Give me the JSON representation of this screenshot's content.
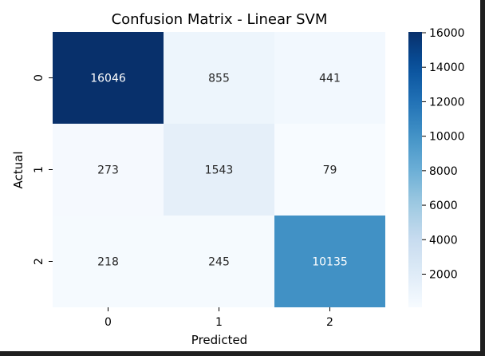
{
  "chart_data": {
    "type": "heatmap",
    "title": "Confusion Matrix - Linear SVM",
    "xlabel": "Predicted",
    "ylabel": "Actual",
    "x_categories": [
      "0",
      "1",
      "2"
    ],
    "y_categories": [
      "0",
      "1",
      "2"
    ],
    "matrix": [
      [
        16046,
        855,
        441
      ],
      [
        273,
        1543,
        79
      ],
      [
        218,
        245,
        10135
      ]
    ],
    "colormap": "Blues",
    "color_range": [
      79,
      16046
    ],
    "colorbar": {
      "ticks": [
        2000,
        4000,
        6000,
        8000,
        10000,
        12000,
        14000,
        16000
      ],
      "tick_labels": [
        "2000",
        "4000",
        "6000",
        "8000",
        "10000",
        "12000",
        "14000",
        "16000"
      ],
      "placement": "right"
    },
    "grid": false
  }
}
